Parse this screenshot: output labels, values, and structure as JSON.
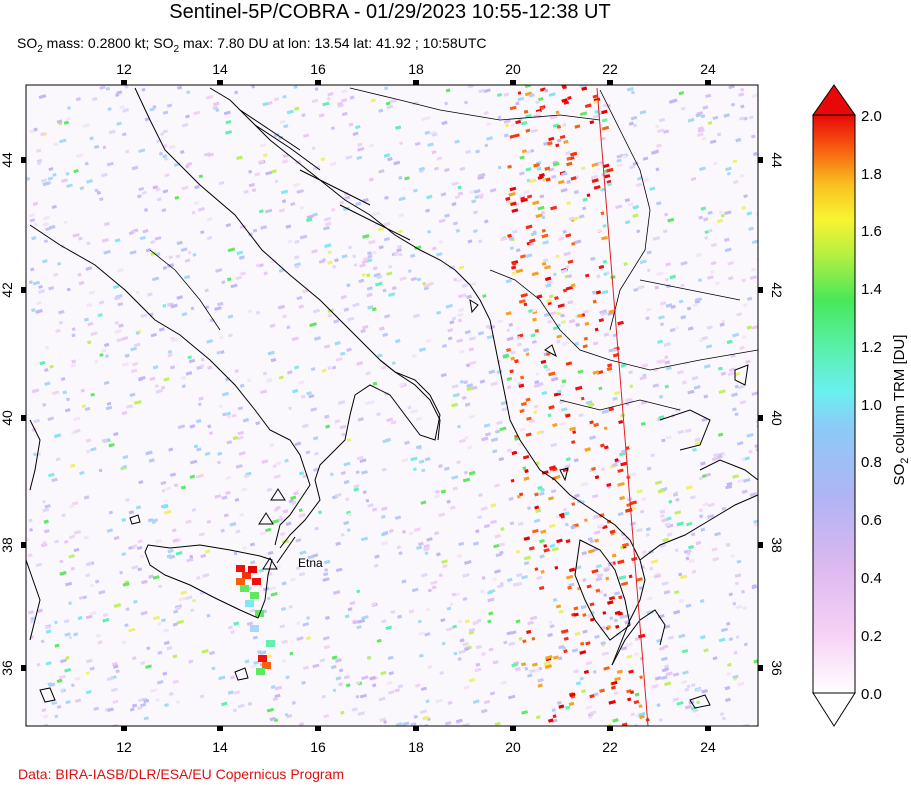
{
  "header": {
    "title": "Sentinel-5P/COBRA - 01/29/2023 10:55-12:38 UT",
    "so2_label": "SO",
    "so2_sub": "2",
    "mass_text": " mass: 0.2800 kt; SO",
    "max_text": " max: 7.80 DU at lon: 13.54 lat: 41.92 ; 10:58UTC"
  },
  "map": {
    "lon_ticks": [
      "12",
      "14",
      "16",
      "18",
      "20",
      "22",
      "24"
    ],
    "lat_ticks": [
      "44",
      "42",
      "40",
      "38",
      "36"
    ],
    "volcano_label": "Etna"
  },
  "colorbar": {
    "ticks": [
      "2.0",
      "1.8",
      "1.6",
      "1.4",
      "1.2",
      "1.0",
      "0.8",
      "0.6",
      "0.4",
      "0.2",
      "0.0"
    ],
    "label_main": "SO",
    "label_sub": "2",
    "label_rest": " column TRM [DU]",
    "colors": [
      "#ffffff",
      "#f4c8f4",
      "#c8b4f0",
      "#a0b4f4",
      "#70e0f4",
      "#60f4d0",
      "#50f060",
      "#b0f040",
      "#f8f830",
      "#f8c020",
      "#f87010",
      "#f01010",
      "#e00000"
    ]
  },
  "footer": {
    "credit": "Data: BIRA-IASB/DLR/ESA/EU Copernicus Program"
  }
}
